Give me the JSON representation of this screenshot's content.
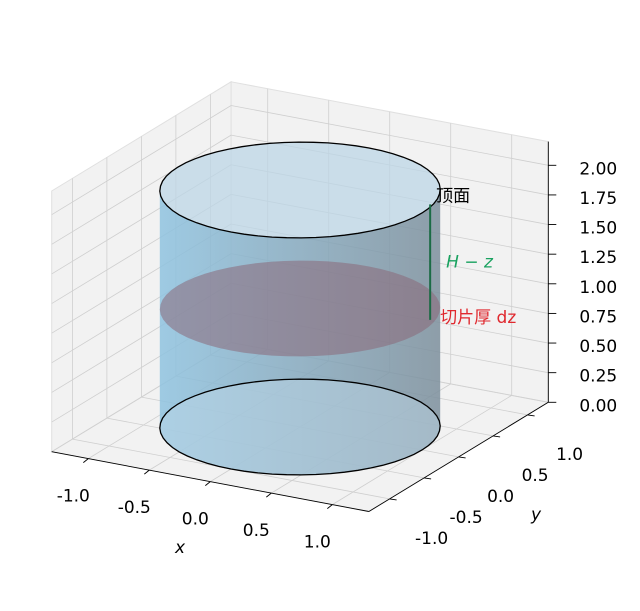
{
  "chart_data": {
    "type": "cylinder3d",
    "radius": 1,
    "height": 2,
    "slice_z": 1,
    "xlabel": "x",
    "ylabel": "y",
    "xlim": [
      -1.3,
      1.3
    ],
    "ylim": [
      -1.3,
      1.3
    ],
    "zlim": [
      0,
      2.2
    ],
    "xticks": [
      {
        "value": -1,
        "label": "-1.0"
      },
      {
        "value": -0.5,
        "label": "-0.5"
      },
      {
        "value": 0,
        "label": "0.0"
      },
      {
        "value": 0.5,
        "label": "0.5"
      },
      {
        "value": 1,
        "label": "1.0"
      }
    ],
    "yticks": [
      {
        "value": -1,
        "label": "-1.0"
      },
      {
        "value": -0.5,
        "label": "-0.5"
      },
      {
        "value": 0,
        "label": "0.0"
      },
      {
        "value": 0.5,
        "label": "0.5"
      },
      {
        "value": 1,
        "label": "1.0"
      }
    ],
    "zticks": [
      {
        "value": 0,
        "label": "0.00"
      },
      {
        "value": 0.25,
        "label": "0.25"
      },
      {
        "value": 0.5,
        "label": "0.50"
      },
      {
        "value": 0.75,
        "label": "0.75"
      },
      {
        "value": 1,
        "label": "1.00"
      },
      {
        "value": 1.25,
        "label": "1.25"
      },
      {
        "value": 1.5,
        "label": "1.50"
      },
      {
        "value": 1.75,
        "label": "1.75"
      },
      {
        "value": 2,
        "label": "2.00"
      }
    ],
    "grid": true,
    "annotations": [
      {
        "text": "顶面",
        "color": "#000000"
      },
      {
        "text": "H − z",
        "color": "#1aa260"
      },
      {
        "text": "切片厚 dz",
        "color": "#e0282e"
      }
    ],
    "colors": {
      "side": "#8fc3e0",
      "side_dark": "#7c8f9c",
      "cap": "#bcd5e6",
      "slice": "#8a6878",
      "marker": "#1b6b45"
    }
  }
}
